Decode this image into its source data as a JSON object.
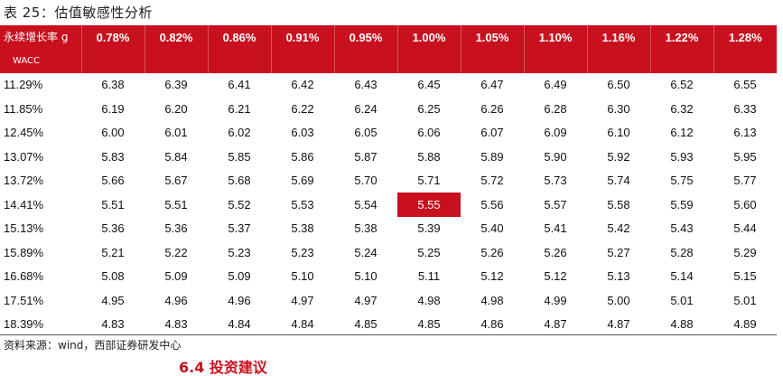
{
  "title": "表 25：估值敏感性分析",
  "table": {
    "growth_label": "永续增长率 g",
    "wacc_label": "WACC",
    "growth_rates": [
      "0.78%",
      "0.82%",
      "0.86%",
      "0.91%",
      "0.95%",
      "1.00%",
      "1.05%",
      "1.10%",
      "1.16%",
      "1.22%",
      "1.28%"
    ],
    "rows": [
      {
        "wacc": "11.29%",
        "values": [
          "6.38",
          "6.39",
          "6.41",
          "6.42",
          "6.43",
          "6.45",
          "6.47",
          "6.49",
          "6.50",
          "6.52",
          "6.55"
        ]
      },
      {
        "wacc": "11.85%",
        "values": [
          "6.19",
          "6.20",
          "6.21",
          "6.22",
          "6.24",
          "6.25",
          "6.26",
          "6.28",
          "6.30",
          "6.32",
          "6.33"
        ]
      },
      {
        "wacc": "12.45%",
        "values": [
          "6.00",
          "6.01",
          "6.02",
          "6.03",
          "6.05",
          "6.06",
          "6.07",
          "6.09",
          "6.10",
          "6.12",
          "6.13"
        ]
      },
      {
        "wacc": "13.07%",
        "values": [
          "5.83",
          "5.84",
          "5.85",
          "5.86",
          "5.87",
          "5.88",
          "5.89",
          "5.90",
          "5.92",
          "5.93",
          "5.95"
        ]
      },
      {
        "wacc": "13.72%",
        "values": [
          "5.66",
          "5.67",
          "5.68",
          "5.69",
          "5.70",
          "5.71",
          "5.72",
          "5.73",
          "5.74",
          "5.75",
          "5.77"
        ]
      },
      {
        "wacc": "14.41%",
        "values": [
          "5.51",
          "5.51",
          "5.52",
          "5.53",
          "5.54",
          "5.55",
          "5.56",
          "5.57",
          "5.58",
          "5.59",
          "5.60"
        ]
      },
      {
        "wacc": "15.13%",
        "values": [
          "5.36",
          "5.36",
          "5.37",
          "5.38",
          "5.38",
          "5.39",
          "5.40",
          "5.41",
          "5.42",
          "5.43",
          "5.44"
        ]
      },
      {
        "wacc": "15.89%",
        "values": [
          "5.21",
          "5.22",
          "5.23",
          "5.23",
          "5.24",
          "5.25",
          "5.26",
          "5.26",
          "5.27",
          "5.28",
          "5.29"
        ]
      },
      {
        "wacc": "16.68%",
        "values": [
          "5.08",
          "5.09",
          "5.09",
          "5.10",
          "5.10",
          "5.11",
          "5.12",
          "5.12",
          "5.13",
          "5.14",
          "5.15"
        ]
      },
      {
        "wacc": "17.51%",
        "values": [
          "4.95",
          "4.96",
          "4.96",
          "4.97",
          "4.97",
          "4.98",
          "4.98",
          "4.99",
          "5.00",
          "5.01",
          "5.01"
        ]
      },
      {
        "wacc": "18.39%",
        "values": [
          "4.83",
          "4.83",
          "4.84",
          "4.84",
          "4.85",
          "4.85",
          "4.86",
          "4.87",
          "4.87",
          "4.88",
          "4.89"
        ]
      }
    ],
    "highlight": {
      "row": 5,
      "col": 5
    }
  },
  "source": "资料来源：wind，西部证券研发中心",
  "next_section": "6.4 投资建议",
  "colors": {
    "header_bg": "#c8101f",
    "header_text": "#ffffff",
    "highlight_bg": "#c8101f"
  }
}
